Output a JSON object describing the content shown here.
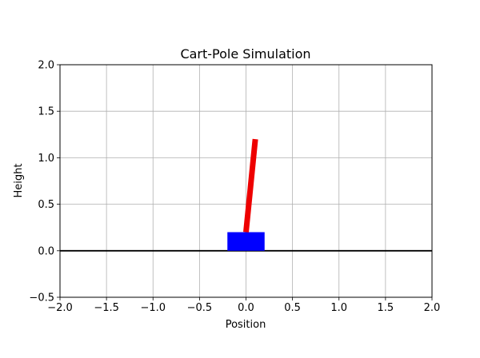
{
  "chart_data": {
    "type": "line",
    "title": "Cart-Pole Simulation",
    "xlabel": "Position",
    "ylabel": "Height",
    "xlim": [
      -2.0,
      2.0
    ],
    "ylim": [
      -0.5,
      2.0
    ],
    "xticks": [
      -2.0,
      -1.5,
      -1.0,
      -0.5,
      0.0,
      0.5,
      1.0,
      1.5,
      2.0
    ],
    "yticks": [
      -0.5,
      0.0,
      0.5,
      1.0,
      1.5,
      2.0
    ],
    "xtick_labels": [
      "−2.0",
      "−1.5",
      "−1.0",
      "−0.5",
      "0.0",
      "0.5",
      "1.0",
      "1.5",
      "2.0"
    ],
    "ytick_labels": [
      "−0.5",
      "0.0",
      "0.5",
      "1.0",
      "1.5",
      "2.0"
    ],
    "grid": true,
    "ground_line": {
      "y": 0.0,
      "color": "#000000"
    },
    "cart": {
      "x_min": -0.2,
      "x_max": 0.2,
      "y_min": 0.0,
      "y_max": 0.2,
      "color": "#0000ff"
    },
    "pole": {
      "x": [
        0.0,
        0.1
      ],
      "y": [
        0.2,
        1.2
      ],
      "color": "#ee0000"
    }
  }
}
